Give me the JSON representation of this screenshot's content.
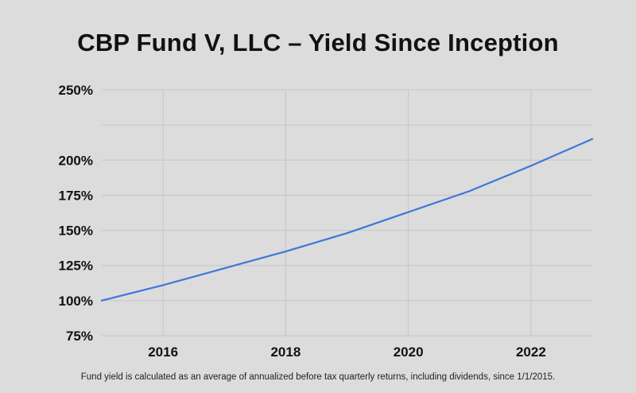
{
  "chart_data": {
    "type": "line",
    "title": "CBP Fund V, LLC – Yield Since Inception",
    "xlabel": "",
    "ylabel": "",
    "footnote": "Fund yield is calculated as an average of annualized before tax quarterly returns, including dividends, since 1/1/2015.",
    "xlim": [
      2015,
      2023
    ],
    "ylim": [
      75,
      250
    ],
    "x_ticks": [
      2016,
      2018,
      2020,
      2022
    ],
    "x_tick_labels": [
      "2016",
      "2018",
      "2020",
      "2022"
    ],
    "y_ticks": [
      75,
      100,
      125,
      150,
      175,
      200,
      250
    ],
    "y_tick_labels": [
      "75%",
      "100%",
      "125%",
      "150%",
      "175%",
      "200%",
      "250%"
    ],
    "grid": true,
    "series": [
      {
        "color": "#3c78d8",
        "x": [
          2015,
          2016,
          2017,
          2018,
          2019,
          2020,
          2021,
          2022,
          2023
        ],
        "y": [
          100,
          111,
          123,
          135,
          148,
          163,
          178,
          196,
          215
        ]
      }
    ]
  },
  "colors": {
    "background": "#dcdcdc",
    "grid": "#c6c6c6",
    "line": "#3c78d8",
    "text": "#111111"
  }
}
